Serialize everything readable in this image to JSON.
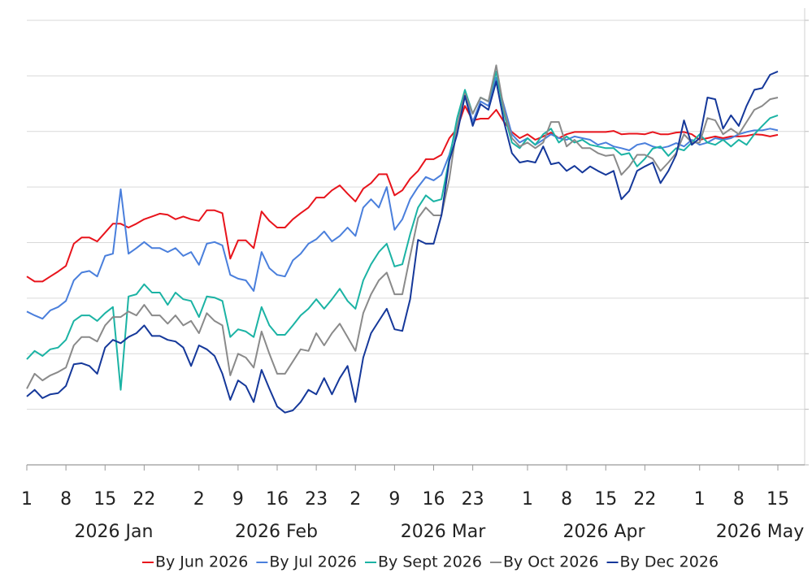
{
  "chart_data": {
    "type": "line",
    "categories": [
      "1",
      null,
      null,
      null,
      null,
      "8",
      null,
      null,
      null,
      null,
      "15",
      null,
      null,
      null,
      null,
      "22",
      null,
      null,
      null,
      null,
      null,
      null,
      "2",
      null,
      null,
      null,
      null,
      "9",
      null,
      null,
      null,
      null,
      "16",
      null,
      null,
      null,
      null,
      "23",
      null,
      null,
      null,
      null,
      "2",
      null,
      null,
      null,
      null,
      "9",
      null,
      null,
      null,
      null,
      "16",
      null,
      null,
      null,
      null,
      "23",
      null,
      null,
      null,
      null,
      null,
      null,
      "1",
      null,
      null,
      null,
      null,
      "8",
      null,
      null,
      null,
      null,
      "15",
      null,
      null,
      null,
      null,
      "22",
      null,
      null,
      null,
      null,
      null,
      null,
      "1",
      null,
      null,
      null,
      null,
      "8",
      null,
      null,
      null,
      null,
      "15"
    ],
    "month_labels": [
      "2026 Jan",
      "2026 Feb",
      "2026 Mar",
      "2026 Apr",
      "2026 May"
    ],
    "ylim": [
      0,
      8
    ],
    "yticks": [
      0,
      1,
      2,
      3,
      4,
      5,
      6,
      7,
      8
    ],
    "grid": true,
    "legend": "bottom",
    "series": [
      {
        "name": "By Jun 2026",
        "color": "#e8141c",
        "values": [
          3.39,
          3.3,
          3.3,
          3.39,
          3.48,
          3.58,
          3.98,
          4.09,
          4.09,
          4.02,
          4.18,
          4.34,
          4.34,
          4.27,
          4.34,
          4.42,
          4.47,
          4.52,
          4.5,
          4.42,
          4.47,
          4.42,
          4.39,
          4.58,
          4.58,
          4.53,
          3.71,
          4.04,
          4.04,
          3.9,
          4.56,
          4.39,
          4.27,
          4.27,
          4.42,
          4.53,
          4.63,
          4.81,
          4.81,
          4.94,
          5.03,
          4.88,
          4.74,
          4.97,
          5.07,
          5.23,
          5.23,
          4.85,
          4.94,
          5.15,
          5.29,
          5.5,
          5.5,
          5.58,
          5.88,
          6.05,
          6.46,
          6.2,
          6.23,
          6.23,
          6.39,
          6.17,
          5.99,
          5.88,
          5.95,
          5.85,
          5.91,
          5.98,
          5.88,
          5.95,
          5.99,
          5.99,
          5.99,
          5.99,
          5.99,
          6.01,
          5.95,
          5.96,
          5.96,
          5.95,
          5.99,
          5.95,
          5.95,
          5.98,
          5.99,
          5.95,
          5.85,
          5.88,
          5.91,
          5.88,
          5.91,
          5.91,
          5.92,
          5.95,
          5.94,
          5.91,
          5.94
        ]
      },
      {
        "name": "By Jul 2026",
        "color": "#4a7fdc",
        "values": [
          2.76,
          2.69,
          2.63,
          2.78,
          2.84,
          2.95,
          3.32,
          3.46,
          3.49,
          3.39,
          3.76,
          3.8,
          4.96,
          3.8,
          3.9,
          4.01,
          3.9,
          3.9,
          3.83,
          3.9,
          3.76,
          3.83,
          3.6,
          3.98,
          4.01,
          3.95,
          3.42,
          3.35,
          3.32,
          3.13,
          3.83,
          3.54,
          3.42,
          3.39,
          3.68,
          3.8,
          3.98,
          4.06,
          4.2,
          4.02,
          4.12,
          4.27,
          4.12,
          4.63,
          4.78,
          4.63,
          5.0,
          4.23,
          4.42,
          4.78,
          5.0,
          5.18,
          5.12,
          5.22,
          5.58,
          6.1,
          6.68,
          6.17,
          6.54,
          6.46,
          6.97,
          6.46,
          5.95,
          5.8,
          5.88,
          5.76,
          5.85,
          5.95,
          5.88,
          5.85,
          5.91,
          5.88,
          5.85,
          5.76,
          5.8,
          5.73,
          5.7,
          5.66,
          5.76,
          5.79,
          5.73,
          5.7,
          5.73,
          5.79,
          5.73,
          5.85,
          5.76,
          5.8,
          5.88,
          5.85,
          5.88,
          5.95,
          5.99,
          6.02,
          6.02,
          6.05,
          6.02
        ]
      },
      {
        "name": "By Sept 2026",
        "color": "#1bb3a4",
        "values": [
          1.9,
          2.05,
          1.96,
          2.08,
          2.11,
          2.25,
          2.59,
          2.69,
          2.69,
          2.59,
          2.73,
          2.84,
          1.35,
          3.03,
          3.07,
          3.25,
          3.1,
          3.1,
          2.88,
          3.1,
          2.98,
          2.95,
          2.66,
          3.03,
          3.01,
          2.95,
          2.3,
          2.44,
          2.4,
          2.3,
          2.84,
          2.51,
          2.34,
          2.34,
          2.51,
          2.69,
          2.81,
          2.98,
          2.81,
          2.98,
          3.17,
          2.95,
          2.81,
          3.32,
          3.61,
          3.83,
          3.98,
          3.57,
          3.61,
          4.15,
          4.63,
          4.85,
          4.74,
          4.78,
          5.51,
          6.24,
          6.75,
          6.32,
          6.61,
          6.54,
          7.08,
          6.32,
          5.8,
          5.7,
          5.88,
          5.76,
          5.95,
          6.05,
          5.8,
          5.91,
          5.8,
          5.85,
          5.76,
          5.73,
          5.7,
          5.7,
          5.58,
          5.61,
          5.37,
          5.51,
          5.69,
          5.73,
          5.56,
          5.7,
          5.66,
          5.8,
          5.95,
          5.8,
          5.76,
          5.85,
          5.73,
          5.85,
          5.76,
          5.95,
          6.1,
          6.24,
          6.29
        ]
      },
      {
        "name": "By Oct 2026",
        "color": "#8a8a8a",
        "values": [
          1.37,
          1.64,
          1.52,
          1.61,
          1.67,
          1.75,
          2.15,
          2.3,
          2.3,
          2.22,
          2.51,
          2.66,
          2.66,
          2.76,
          2.69,
          2.88,
          2.69,
          2.69,
          2.54,
          2.69,
          2.51,
          2.59,
          2.37,
          2.73,
          2.59,
          2.51,
          1.61,
          2.0,
          1.93,
          1.75,
          2.4,
          2.0,
          1.64,
          1.64,
          1.86,
          2.08,
          2.05,
          2.37,
          2.15,
          2.37,
          2.54,
          2.3,
          2.05,
          2.73,
          3.07,
          3.32,
          3.46,
          3.07,
          3.07,
          3.76,
          4.44,
          4.63,
          4.49,
          4.49,
          5.15,
          6.1,
          6.68,
          6.32,
          6.61,
          6.54,
          7.19,
          6.39,
          5.88,
          5.73,
          5.8,
          5.7,
          5.8,
          6.17,
          6.17,
          5.73,
          5.85,
          5.7,
          5.7,
          5.61,
          5.56,
          5.58,
          5.22,
          5.37,
          5.58,
          5.58,
          5.51,
          5.29,
          5.44,
          5.61,
          5.95,
          5.8,
          5.8,
          6.24,
          6.2,
          5.95,
          6.05,
          5.95,
          6.17,
          6.39,
          6.46,
          6.58,
          6.61
        ]
      },
      {
        "name": "By Dec 2026",
        "color": "#15389a",
        "values": [
          1.23,
          1.35,
          1.2,
          1.27,
          1.29,
          1.42,
          1.81,
          1.83,
          1.78,
          1.64,
          2.11,
          2.25,
          2.19,
          2.3,
          2.37,
          2.51,
          2.32,
          2.32,
          2.25,
          2.22,
          2.11,
          1.78,
          2.15,
          2.08,
          1.96,
          1.64,
          1.17,
          1.52,
          1.42,
          1.13,
          1.71,
          1.37,
          1.05,
          0.94,
          0.98,
          1.13,
          1.35,
          1.27,
          1.56,
          1.27,
          1.56,
          1.78,
          1.13,
          1.93,
          2.37,
          2.59,
          2.81,
          2.44,
          2.41,
          2.98,
          4.05,
          3.98,
          3.98,
          4.49,
          5.47,
          5.95,
          6.64,
          6.1,
          6.49,
          6.39,
          6.9,
          6.17,
          5.61,
          5.44,
          5.47,
          5.44,
          5.73,
          5.41,
          5.44,
          5.29,
          5.38,
          5.26,
          5.37,
          5.29,
          5.22,
          5.29,
          4.78,
          4.93,
          5.29,
          5.37,
          5.44,
          5.07,
          5.29,
          5.58,
          6.2,
          5.76,
          5.88,
          6.61,
          6.58,
          6.05,
          6.29,
          6.1,
          6.46,
          6.75,
          6.78,
          7.02,
          7.08
        ]
      }
    ]
  }
}
